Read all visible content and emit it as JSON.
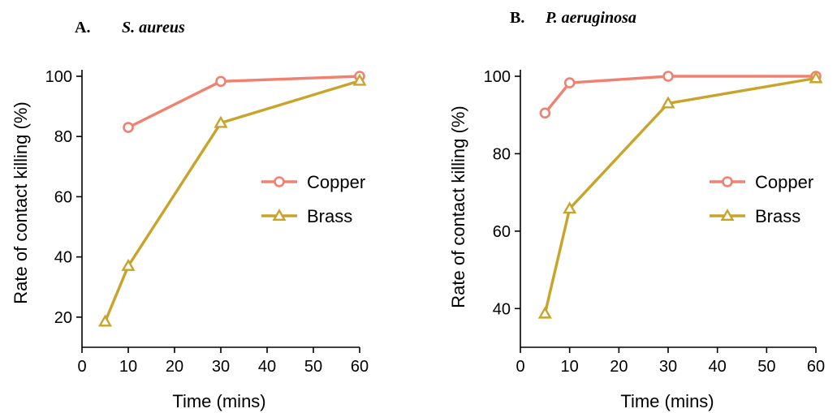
{
  "figure": {
    "panels": [
      {
        "letter": "A.",
        "organism": "S. aureus"
      },
      {
        "letter": "B.",
        "organism": "P. aeruginosa"
      }
    ]
  },
  "colors": {
    "copper": "#F08070",
    "brass": "#C8A42A"
  },
  "chart_data": [
    {
      "type": "line",
      "title": "A. S. aureus",
      "xlabel": "Time (mins)",
      "ylabel": "Rate of contact killing (%)",
      "xlim": [
        0,
        60
      ],
      "ylim": [
        10,
        100
      ],
      "xticks": [
        0,
        10,
        20,
        30,
        40,
        50,
        60
      ],
      "yticks": [
        20,
        40,
        60,
        80,
        100
      ],
      "legend": {
        "placement": "right"
      },
      "grid": false,
      "series": [
        {
          "name": "Copper",
          "marker": "circle",
          "x": [
            10,
            30,
            60
          ],
          "y": [
            83,
            98.3,
            100
          ]
        },
        {
          "name": "Brass",
          "marker": "triangle",
          "x": [
            5,
            10,
            30,
            60
          ],
          "y": [
            18.5,
            37,
            84.5,
            98.5
          ]
        }
      ]
    },
    {
      "type": "line",
      "title": "B. P. aeruginosa",
      "xlabel": "Time (mins)",
      "ylabel": "Rate of contact killing (%)",
      "xlim": [
        0,
        60
      ],
      "ylim": [
        30,
        100
      ],
      "xticks": [
        0,
        10,
        20,
        30,
        40,
        50,
        60
      ],
      "yticks": [
        40,
        60,
        80,
        100
      ],
      "legend": {
        "placement": "right"
      },
      "grid": false,
      "series": [
        {
          "name": "Copper",
          "marker": "circle",
          "x": [
            5,
            10,
            30,
            60
          ],
          "y": [
            90.5,
            98.3,
            100,
            100
          ]
        },
        {
          "name": "Brass",
          "marker": "triangle",
          "x": [
            5,
            10,
            30,
            60
          ],
          "y": [
            38.7,
            65.8,
            93,
            99.5
          ]
        }
      ]
    }
  ]
}
